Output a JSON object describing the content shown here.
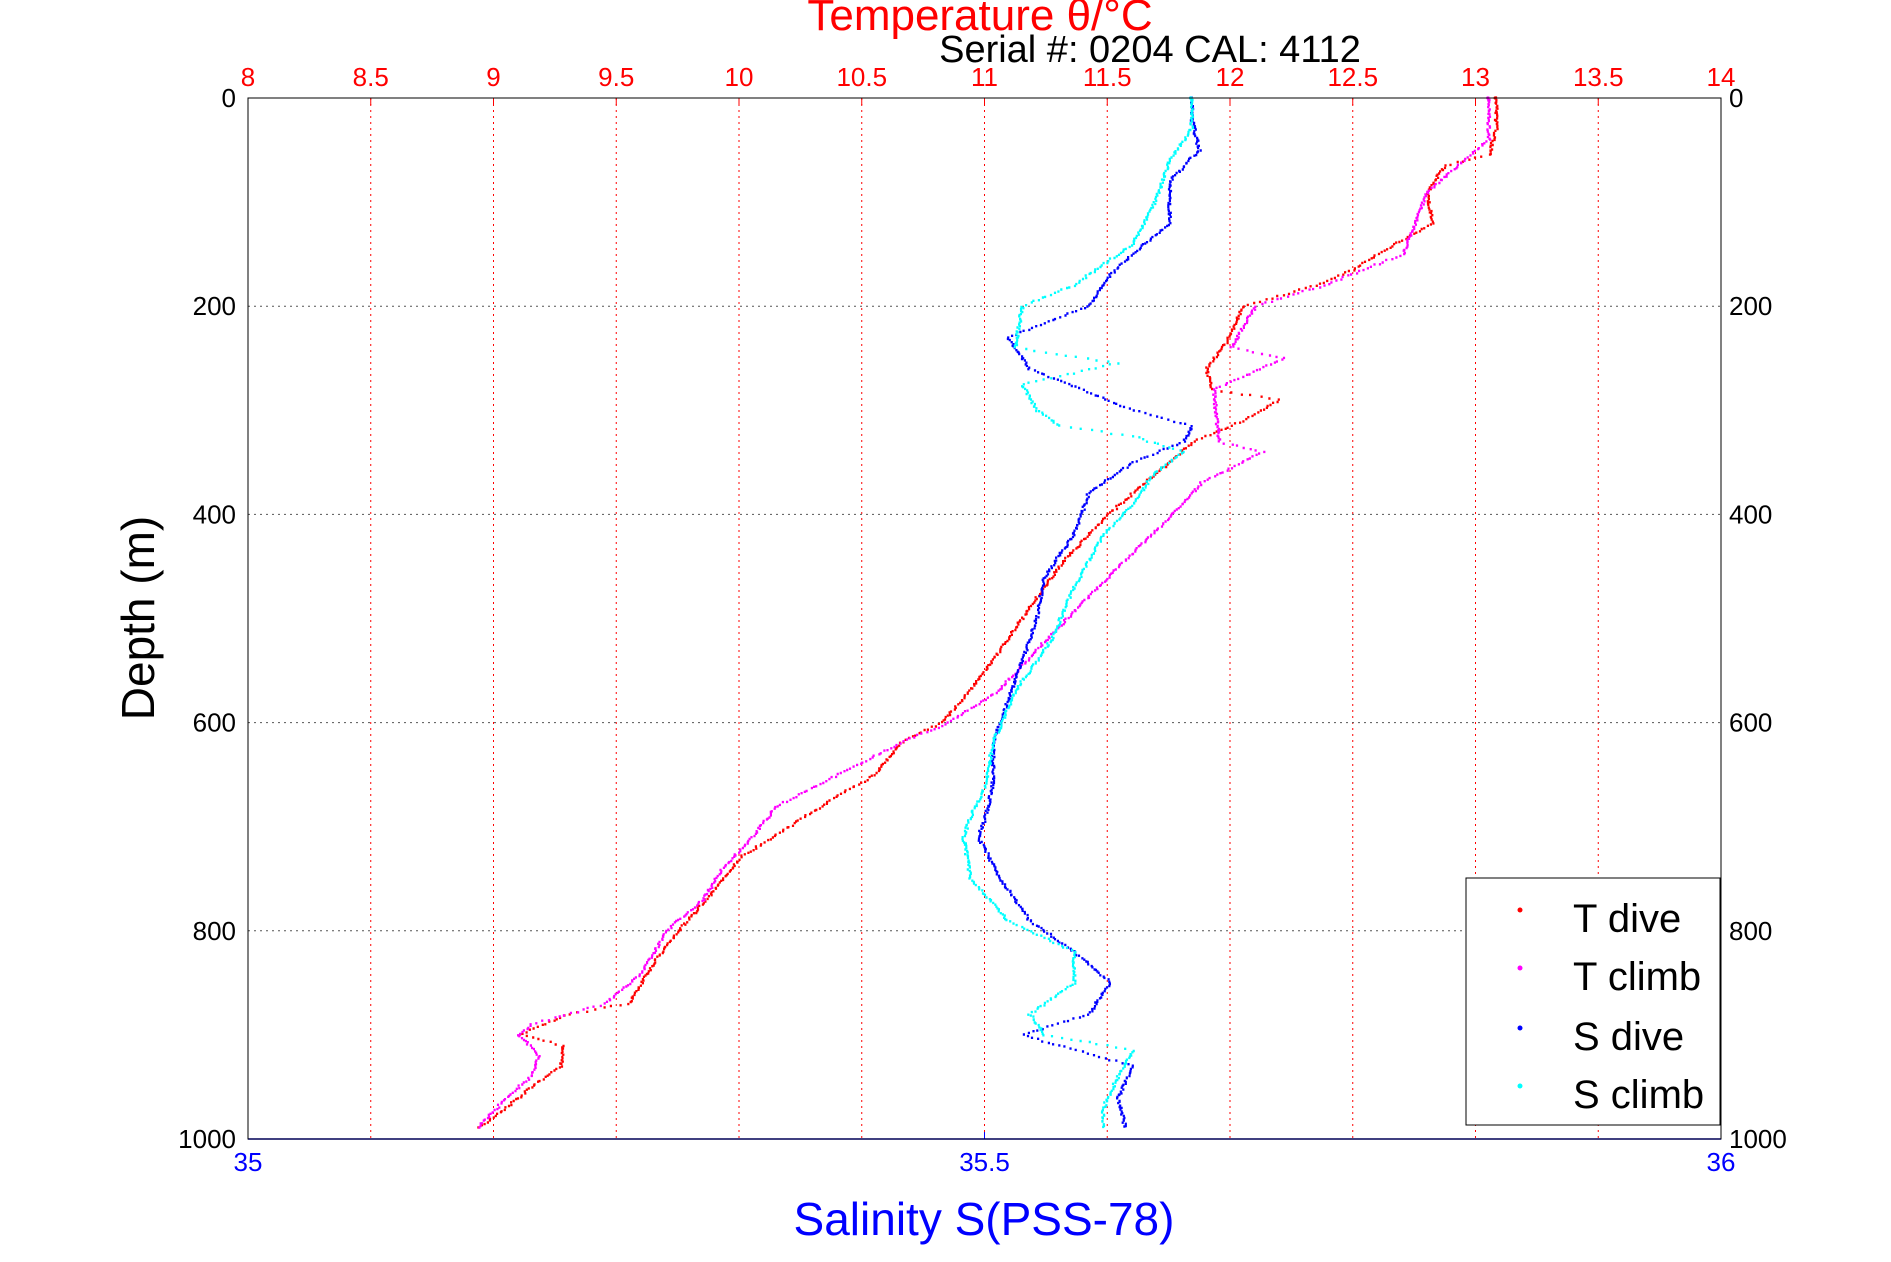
{
  "chart_data": {
    "type": "scatter",
    "title": "Temperature θ/°C",
    "subtitle": "Serial #: 0204  CAL: 4112",
    "xlabel_top": "Temperature θ/°C",
    "xlabel_bottom": "Salinity S(PSS-78)",
    "ylabel": "Depth (m)",
    "x_top": {
      "lim": [
        8,
        14
      ],
      "ticks": [
        "8",
        "8.5",
        "9",
        "9.5",
        "10",
        "10.5",
        "11",
        "11.5",
        "12",
        "12.5",
        "13",
        "13.5",
        "14"
      ]
    },
    "x_bottom": {
      "lim": [
        35,
        36
      ],
      "ticks": [
        "35",
        "35.5",
        "36"
      ]
    },
    "y": {
      "lim": [
        0,
        1000
      ],
      "reversed": true,
      "ticks": [
        "0",
        "200",
        "400",
        "600",
        "800",
        "1000"
      ]
    },
    "legend": {
      "placement": "bottom-right",
      "entries": [
        "T dive",
        "T climb",
        "S dive",
        "S climb"
      ]
    },
    "colors": {
      "t_dive": "#ff0000",
      "t_climb": "#ff00ff",
      "s_dive": "#0000ff",
      "s_climb": "#00ffff",
      "temp_axis": "#ff0000",
      "sal_axis": "#0000ff"
    },
    "series": [
      {
        "name": "T dive",
        "axis": "temperature",
        "color": "#ff0000",
        "profile": [
          [
            0,
            13.08
          ],
          [
            30,
            13.08
          ],
          [
            55,
            13.05
          ],
          [
            65,
            12.87
          ],
          [
            90,
            12.8
          ],
          [
            120,
            12.82
          ],
          [
            150,
            12.6
          ],
          [
            165,
            12.5
          ],
          [
            180,
            12.35
          ],
          [
            200,
            12.05
          ],
          [
            235,
            11.98
          ],
          [
            260,
            11.9
          ],
          [
            280,
            11.92
          ],
          [
            290,
            12.2
          ],
          [
            310,
            12.05
          ],
          [
            330,
            11.85
          ],
          [
            360,
            11.7
          ],
          [
            400,
            11.5
          ],
          [
            450,
            11.3
          ],
          [
            500,
            11.15
          ],
          [
            550,
            11.0
          ],
          [
            580,
            10.9
          ],
          [
            600,
            10.82
          ],
          [
            620,
            10.65
          ],
          [
            650,
            10.55
          ],
          [
            670,
            10.4
          ],
          [
            700,
            10.2
          ],
          [
            730,
            10.0
          ],
          [
            760,
            9.9
          ],
          [
            800,
            9.75
          ],
          [
            830,
            9.65
          ],
          [
            870,
            9.55
          ],
          [
            880,
            9.3
          ],
          [
            900,
            9.1
          ],
          [
            910,
            9.28
          ],
          [
            930,
            9.27
          ],
          [
            950,
            9.15
          ],
          [
            970,
            9.05
          ],
          [
            990,
            8.93
          ]
        ]
      },
      {
        "name": "T climb",
        "axis": "temperature",
        "color": "#ff00ff",
        "profile": [
          [
            0,
            13.05
          ],
          [
            40,
            13.05
          ],
          [
            60,
            12.95
          ],
          [
            90,
            12.8
          ],
          [
            150,
            12.7
          ],
          [
            180,
            12.38
          ],
          [
            200,
            12.1
          ],
          [
            240,
            12.0
          ],
          [
            250,
            12.22
          ],
          [
            280,
            11.93
          ],
          [
            330,
            11.95
          ],
          [
            340,
            12.13
          ],
          [
            370,
            11.88
          ],
          [
            410,
            11.72
          ],
          [
            460,
            11.5
          ],
          [
            520,
            11.25
          ],
          [
            570,
            11.05
          ],
          [
            600,
            10.85
          ],
          [
            620,
            10.65
          ],
          [
            650,
            10.4
          ],
          [
            680,
            10.15
          ],
          [
            710,
            10.05
          ],
          [
            740,
            9.93
          ],
          [
            770,
            9.85
          ],
          [
            800,
            9.7
          ],
          [
            840,
            9.6
          ],
          [
            870,
            9.45
          ],
          [
            890,
            9.15
          ],
          [
            900,
            9.1
          ],
          [
            920,
            9.18
          ],
          [
            940,
            9.15
          ],
          [
            960,
            9.05
          ],
          [
            980,
            8.97
          ],
          [
            990,
            8.93
          ]
        ]
      },
      {
        "name": "S dive",
        "axis": "salinity",
        "color": "#0000ff",
        "profile": [
          [
            0,
            35.64
          ],
          [
            20,
            35.64
          ],
          [
            50,
            35.645
          ],
          [
            80,
            35.625
          ],
          [
            120,
            35.625
          ],
          [
            150,
            35.6
          ],
          [
            170,
            35.585
          ],
          [
            200,
            35.57
          ],
          [
            230,
            35.515
          ],
          [
            260,
            35.53
          ],
          [
            300,
            35.6
          ],
          [
            315,
            35.64
          ],
          [
            330,
            35.635
          ],
          [
            350,
            35.6
          ],
          [
            380,
            35.57
          ],
          [
            420,
            35.56
          ],
          [
            460,
            35.54
          ],
          [
            500,
            35.535
          ],
          [
            560,
            35.52
          ],
          [
            620,
            35.505
          ],
          [
            660,
            35.505
          ],
          [
            690,
            35.5
          ],
          [
            710,
            35.495
          ],
          [
            750,
            35.51
          ],
          [
            790,
            35.53
          ],
          [
            820,
            35.56
          ],
          [
            850,
            35.585
          ],
          [
            880,
            35.57
          ],
          [
            900,
            35.525
          ],
          [
            910,
            35.55
          ],
          [
            930,
            35.6
          ],
          [
            960,
            35.59
          ],
          [
            990,
            35.595
          ]
        ]
      },
      {
        "name": "S climb",
        "axis": "salinity",
        "color": "#00ffff",
        "profile": [
          [
            0,
            35.64
          ],
          [
            30,
            35.64
          ],
          [
            60,
            35.625
          ],
          [
            100,
            35.615
          ],
          [
            140,
            35.6
          ],
          [
            180,
            35.56
          ],
          [
            200,
            35.525
          ],
          [
            240,
            35.52
          ],
          [
            255,
            35.59
          ],
          [
            275,
            35.525
          ],
          [
            300,
            35.535
          ],
          [
            315,
            35.55
          ],
          [
            325,
            35.6
          ],
          [
            340,
            35.635
          ],
          [
            360,
            35.615
          ],
          [
            390,
            35.6
          ],
          [
            420,
            35.58
          ],
          [
            470,
            35.56
          ],
          [
            520,
            35.545
          ],
          [
            570,
            35.52
          ],
          [
            620,
            35.505
          ],
          [
            660,
            35.5
          ],
          [
            690,
            35.49
          ],
          [
            710,
            35.485
          ],
          [
            750,
            35.49
          ],
          [
            790,
            35.515
          ],
          [
            820,
            35.56
          ],
          [
            850,
            35.56
          ],
          [
            880,
            35.53
          ],
          [
            900,
            35.54
          ],
          [
            915,
            35.6
          ],
          [
            940,
            35.59
          ],
          [
            970,
            35.58
          ],
          [
            990,
            35.58
          ]
        ]
      }
    ]
  }
}
